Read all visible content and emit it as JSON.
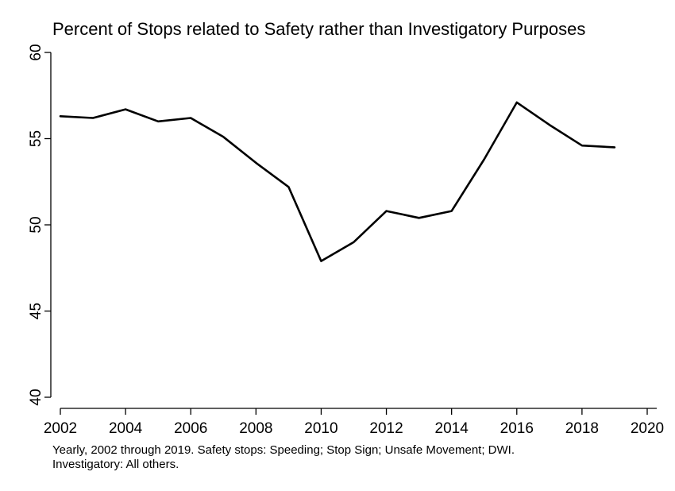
{
  "chart_data": {
    "type": "line",
    "title": "Percent of Stops related to Safety rather than Investigatory Purposes",
    "xlabel": "",
    "ylabel": "",
    "xlim": [
      2002,
      2020
    ],
    "ylim": [
      40,
      60
    ],
    "x_ticks": [
      2002,
      2004,
      2006,
      2008,
      2010,
      2012,
      2014,
      2016,
      2018,
      2020
    ],
    "y_ticks": [
      40,
      45,
      50,
      55,
      60
    ],
    "grid": false,
    "legend": "none",
    "note": [
      "Yearly, 2002 through 2019. Safety stops: Speeding; Stop Sign; Unsafe Movement; DWI.",
      "Investigatory: All others."
    ],
    "line_color": "#000000",
    "series": [
      {
        "x": [
          2002,
          2003,
          2004,
          2005,
          2006,
          2007,
          2008,
          2009,
          2010,
          2011,
          2012,
          2013,
          2014,
          2015,
          2016,
          2017,
          2018,
          2019
        ],
        "values": [
          56.3,
          56.2,
          56.7,
          56.0,
          56.2,
          55.1,
          53.6,
          52.2,
          47.9,
          49.0,
          50.8,
          50.4,
          50.8,
          53.8,
          57.1,
          55.8,
          54.6,
          54.5
        ]
      }
    ]
  }
}
